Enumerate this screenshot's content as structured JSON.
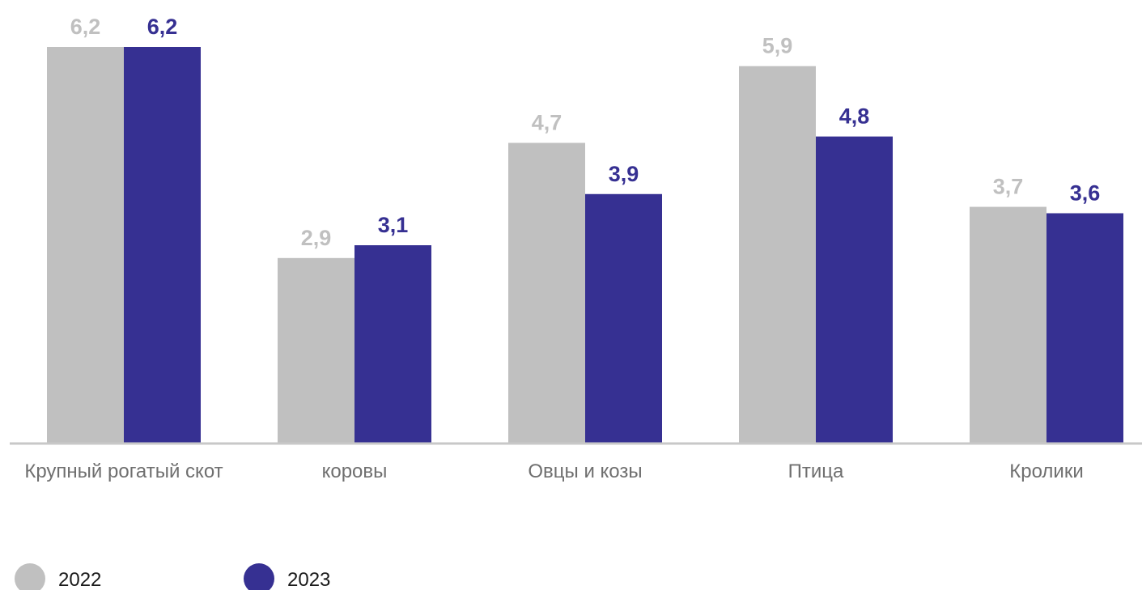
{
  "chart_data": {
    "type": "bar",
    "title": "",
    "xlabel": "",
    "ylabel": "",
    "categories": [
      "Крупный рогатый скот",
      "коровы",
      "Овцы и козы",
      "Птица",
      "Кролики"
    ],
    "value_labels": [
      [
        "6,2",
        "2,9",
        "4,7",
        "5,9",
        "3,7"
      ],
      [
        "6,2",
        "3,1",
        "3,9",
        "4,8",
        "3,6"
      ]
    ],
    "series": [
      {
        "name": "2022",
        "color": "#c0c0c0",
        "values": [
          6.2,
          2.9,
          4.7,
          5.9,
          3.7
        ]
      },
      {
        "name": "2023",
        "color": "#363092",
        "values": [
          6.2,
          3.1,
          3.9,
          4.8,
          3.6
        ]
      }
    ],
    "ylim": [
      0,
      6.2
    ],
    "grid": false,
    "legend_position": "bottom-left",
    "axis_color": "#c8c8c8"
  }
}
